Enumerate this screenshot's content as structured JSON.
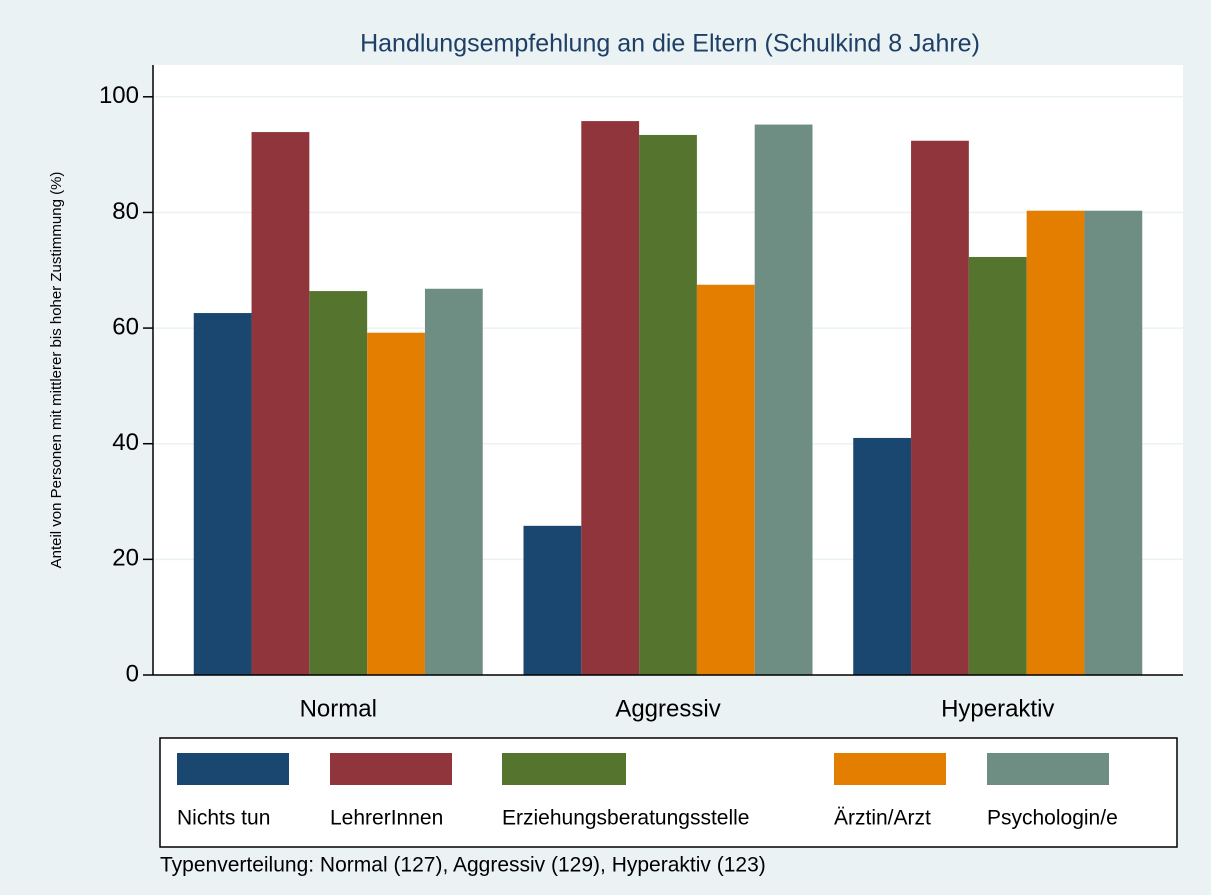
{
  "chart_data": {
    "type": "bar",
    "title": "Handlungsempfehlung an die Eltern (Schulkind 8 Jahre)",
    "y_label": "Anteil von Personen mit mittlerer bis hoher Zustimmung (%)",
    "note": "Typenverteilung: Normal (127), Aggressiv (129), Hyperaktiv (123)",
    "categories": [
      "Normal",
      "Aggressiv",
      "Hyperaktiv"
    ],
    "series": [
      {
        "name": "Nichts tun",
        "color": "#1a476f",
        "values": [
          62.6,
          25.8,
          41
        ]
      },
      {
        "name": "LehrerInnen",
        "color": "#90353b",
        "values": [
          93.9,
          95.8,
          92.4
        ]
      },
      {
        "name": "Erziehungsberatungsstelle",
        "color": "#55752f",
        "values": [
          66.4,
          93.4,
          72.3
        ]
      },
      {
        "name": "Ärztin/Arzt",
        "color": "#e37e00",
        "values": [
          59.2,
          67.5,
          80.3
        ]
      },
      {
        "name": "Psychologin/e",
        "color": "#6e8e84",
        "values": [
          66.8,
          95.2,
          80.3
        ]
      }
    ],
    "ylim": [
      0,
      105.5
    ],
    "yticks": [
      0,
      20,
      40,
      60,
      80,
      100
    ],
    "grid": true,
    "legend": "bottom"
  }
}
